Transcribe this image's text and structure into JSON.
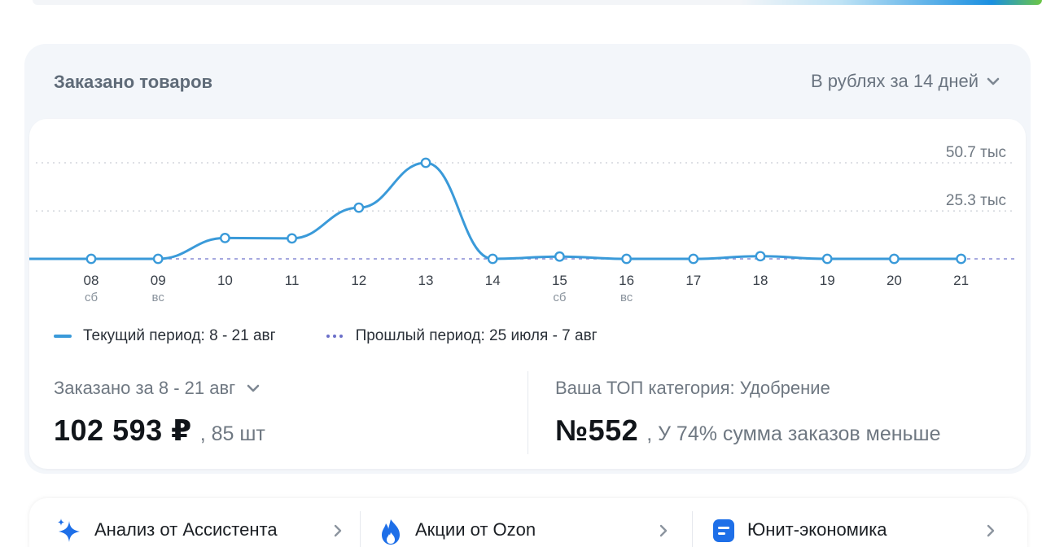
{
  "card": {
    "title": "Заказано товаров",
    "period_select": "В рублях за 14 дней"
  },
  "chart_data": {
    "type": "line",
    "x": [
      "08",
      "09",
      "10",
      "11",
      "12",
      "13",
      "14",
      "15",
      "16",
      "17",
      "18",
      "19",
      "20",
      "21"
    ],
    "x_sub": [
      "сб",
      "вс",
      "",
      "",
      "",
      "",
      "",
      "сб",
      "вс",
      "",
      "",
      "",
      "",
      ""
    ],
    "grid_labels": [
      "50.7 тыс",
      "25.3 тыс"
    ],
    "grid_values": [
      50700,
      25300
    ],
    "ylim": [
      0,
      50700
    ],
    "series": [
      {
        "name": "Текущий период: 8 - 21 авг",
        "color": "#3a9ad9",
        "values": [
          0,
          0,
          11000,
          10800,
          27000,
          50700,
          0,
          1200,
          0,
          0,
          1400,
          0,
          0,
          0
        ]
      },
      {
        "name": "Прошлый период: 25 июля - 7 авг",
        "color": "#6b6fc9",
        "values": [
          0,
          0,
          0,
          0,
          0,
          0,
          0,
          0,
          0,
          0,
          0,
          0,
          0,
          0
        ]
      }
    ]
  },
  "legend": {
    "current": "Текущий период: 8 - 21 авг",
    "previous": "Прошлый период: 25 июля - 7 авг"
  },
  "summary": {
    "ordered_label": "Заказано за 8 - 21 авг",
    "amount": "102 593 ₽",
    "units": ", 85 шт",
    "top_label": "Ваша ТОП категория: Удобрение",
    "rank": "№552",
    "rank_note": ", У 74% сумма заказов меньше"
  },
  "tiles": [
    {
      "label": "Анализ от Ассистента",
      "icon": "sparkle-icon"
    },
    {
      "label": "Акции от Ozon",
      "icon": "fire-icon"
    },
    {
      "label": "Юнит-экономика",
      "icon": "document-icon"
    }
  ],
  "colors": {
    "accent": "#3a9ad9",
    "previous": "#6b6fc9",
    "fire": "#1e6fe8"
  }
}
